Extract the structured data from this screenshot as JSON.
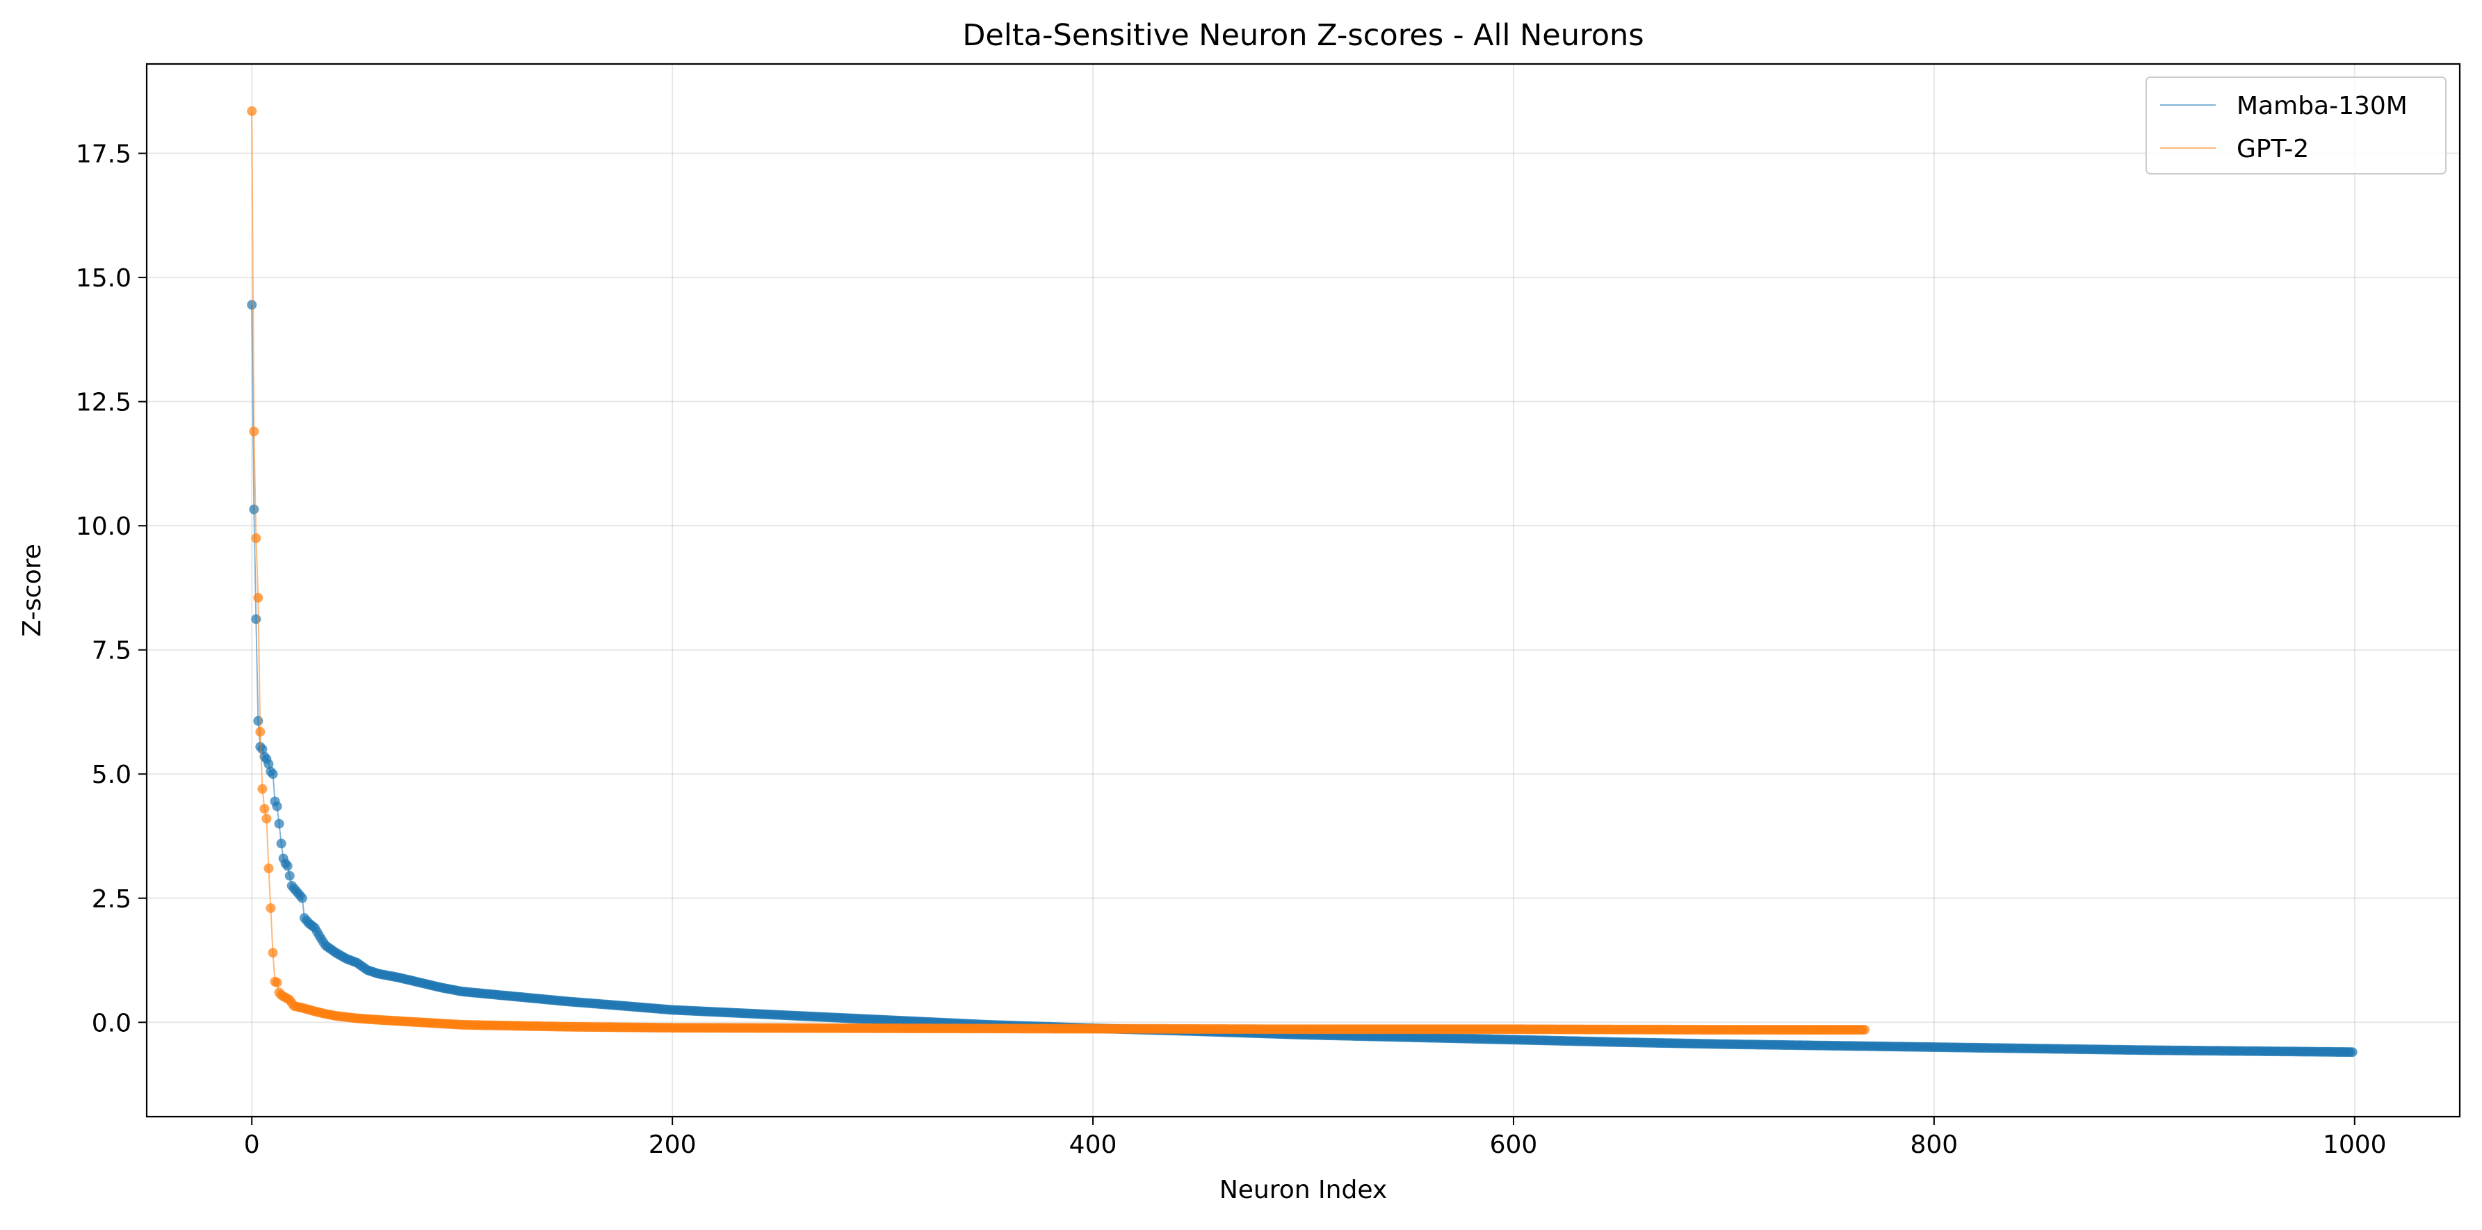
{
  "chart_data": {
    "type": "line",
    "title": "Delta-Sensitive Neuron Z-scores - All Neurons",
    "xlabel": "Neuron Index",
    "ylabel": "Z-score",
    "xlim": [
      -50,
      1050
    ],
    "ylim": [
      -1.9,
      19.3
    ],
    "xticks": [
      0,
      200,
      400,
      600,
      800,
      1000
    ],
    "yticks": [
      0.0,
      2.5,
      5.0,
      7.5,
      10.0,
      12.5,
      15.0,
      17.5
    ],
    "grid": true,
    "legend_position": "top-right",
    "markers": true,
    "series": [
      {
        "name": "Mamba-130M",
        "color": "#1f77b4",
        "n_points": 1000,
        "key_points": [
          [
            0,
            14.45
          ],
          [
            1,
            10.33
          ],
          [
            2,
            8.12
          ],
          [
            3,
            6.07
          ],
          [
            4,
            5.55
          ],
          [
            5,
            5.5
          ],
          [
            6,
            5.35
          ],
          [
            7,
            5.3
          ],
          [
            8,
            5.2
          ],
          [
            9,
            5.05
          ],
          [
            10,
            5.0
          ],
          [
            11,
            4.45
          ],
          [
            12,
            4.35
          ],
          [
            13,
            4.0
          ],
          [
            14,
            3.6
          ],
          [
            15,
            3.3
          ],
          [
            16,
            3.2
          ],
          [
            17,
            3.15
          ],
          [
            18,
            2.95
          ],
          [
            19,
            2.75
          ],
          [
            20,
            2.7
          ],
          [
            22,
            2.6
          ],
          [
            24,
            2.5
          ],
          [
            25,
            2.1
          ],
          [
            27,
            2.0
          ],
          [
            30,
            1.9
          ],
          [
            32,
            1.75
          ],
          [
            35,
            1.55
          ],
          [
            40,
            1.4
          ],
          [
            45,
            1.28
          ],
          [
            50,
            1.2
          ],
          [
            55,
            1.05
          ],
          [
            60,
            0.98
          ],
          [
            70,
            0.9
          ],
          [
            80,
            0.8
          ],
          [
            90,
            0.7
          ],
          [
            100,
            0.62
          ],
          [
            120,
            0.54
          ],
          [
            150,
            0.42
          ],
          [
            180,
            0.32
          ],
          [
            200,
            0.25
          ],
          [
            250,
            0.15
          ],
          [
            300,
            0.05
          ],
          [
            350,
            -0.05
          ],
          [
            400,
            -0.12
          ],
          [
            450,
            -0.18
          ],
          [
            500,
            -0.25
          ],
          [
            550,
            -0.3
          ],
          [
            600,
            -0.35
          ],
          [
            650,
            -0.4
          ],
          [
            700,
            -0.44
          ],
          [
            750,
            -0.47
          ],
          [
            800,
            -0.5
          ],
          [
            850,
            -0.53
          ],
          [
            900,
            -0.56
          ],
          [
            950,
            -0.58
          ],
          [
            999,
            -0.6
          ]
        ]
      },
      {
        "name": "GPT-2",
        "color": "#ff7f0e",
        "n_points": 768,
        "key_points": [
          [
            0,
            18.35
          ],
          [
            1,
            11.9
          ],
          [
            2,
            9.75
          ],
          [
            3,
            8.55
          ],
          [
            4,
            5.85
          ],
          [
            5,
            4.7
          ],
          [
            6,
            4.3
          ],
          [
            7,
            4.1
          ],
          [
            8,
            3.1
          ],
          [
            9,
            2.3
          ],
          [
            10,
            1.4
          ],
          [
            11,
            0.82
          ],
          [
            12,
            0.8
          ],
          [
            13,
            0.6
          ],
          [
            14,
            0.55
          ],
          [
            15,
            0.52
          ],
          [
            16,
            0.5
          ],
          [
            18,
            0.45
          ],
          [
            20,
            0.33
          ],
          [
            25,
            0.28
          ],
          [
            30,
            0.22
          ],
          [
            35,
            0.17
          ],
          [
            40,
            0.13
          ],
          [
            50,
            0.08
          ],
          [
            60,
            0.05
          ],
          [
            80,
            0.0
          ],
          [
            100,
            -0.05
          ],
          [
            150,
            -0.09
          ],
          [
            200,
            -0.11
          ],
          [
            300,
            -0.12
          ],
          [
            400,
            -0.13
          ],
          [
            500,
            -0.14
          ],
          [
            600,
            -0.14
          ],
          [
            700,
            -0.15
          ],
          [
            767,
            -0.15
          ]
        ]
      }
    ]
  }
}
